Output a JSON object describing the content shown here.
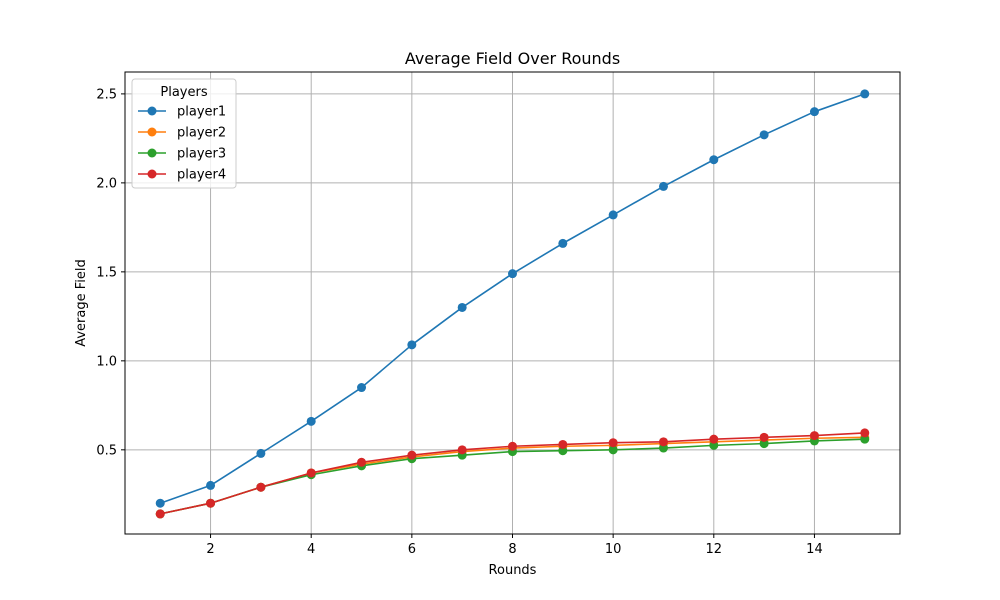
{
  "chart_data": {
    "type": "line",
    "title": "Average Field Over Rounds",
    "xlabel": "Rounds",
    "ylabel": "Average Field",
    "x": [
      1,
      2,
      3,
      4,
      5,
      6,
      7,
      8,
      9,
      10,
      11,
      12,
      13,
      14,
      15
    ],
    "xticks": [
      2,
      4,
      6,
      8,
      10,
      12,
      14
    ],
    "yticks": [
      0.5,
      1.0,
      1.5,
      2.0,
      2.5
    ],
    "ytick_labels": [
      "0.5",
      "1.0",
      "1.5",
      "2.0",
      "2.5"
    ],
    "xlim": [
      0.3,
      15.7
    ],
    "ylim": [
      0.027,
      2.623
    ],
    "grid": true,
    "legend": {
      "title": "Players",
      "placement": "top-left"
    },
    "series": [
      {
        "name": "player1",
        "color": "#1f77b4",
        "values": [
          0.2,
          0.3,
          0.48,
          0.66,
          0.85,
          1.09,
          1.3,
          1.49,
          1.66,
          1.82,
          1.98,
          2.13,
          2.27,
          2.4,
          2.5
        ]
      },
      {
        "name": "player2",
        "color": "#ff7f0e",
        "values": [
          0.14,
          0.2,
          0.29,
          0.37,
          0.42,
          0.46,
          0.49,
          0.51,
          0.52,
          0.525,
          0.535,
          0.545,
          0.555,
          0.565,
          0.57
        ]
      },
      {
        "name": "player3",
        "color": "#2ca02c",
        "values": [
          0.14,
          0.2,
          0.29,
          0.36,
          0.41,
          0.45,
          0.47,
          0.49,
          0.495,
          0.5,
          0.51,
          0.525,
          0.535,
          0.55,
          0.56
        ]
      },
      {
        "name": "player4",
        "color": "#d62728",
        "values": [
          0.14,
          0.2,
          0.29,
          0.37,
          0.43,
          0.47,
          0.5,
          0.52,
          0.53,
          0.54,
          0.545,
          0.56,
          0.57,
          0.58,
          0.595
        ]
      }
    ]
  }
}
